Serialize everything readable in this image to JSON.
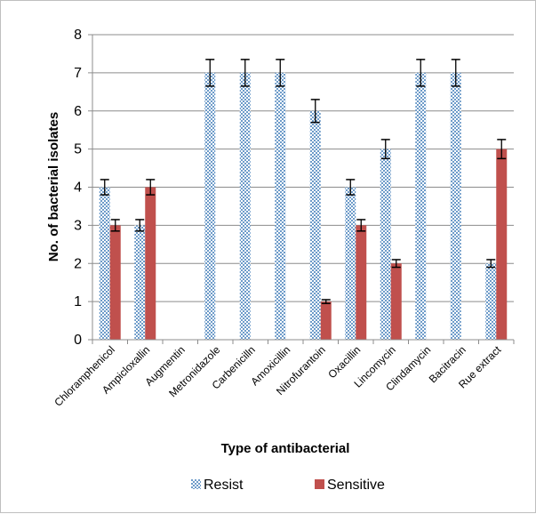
{
  "chart_data": {
    "type": "bar",
    "xlabel": "Type of antibacterial",
    "ylabel": "No. of bacterial isolates",
    "ylim": [
      0,
      8
    ],
    "yticks": [
      0,
      1,
      2,
      3,
      4,
      5,
      6,
      7,
      8
    ],
    "grid": "horizontal",
    "legend_position": "bottom",
    "categories": [
      "Chloramphenicol",
      "Ampicloxallin",
      "Augmentin",
      "Metronidazole",
      "Carbenicilln",
      "Amoxicillin",
      "Nitrofurantoin",
      "Oxacillin",
      "Lincomycin",
      "Clindamycin",
      "Bacitracin",
      "Rue extract"
    ],
    "series": [
      {
        "name": "Resist",
        "color": "#6d9bc9",
        "pattern": "checkered",
        "values": [
          4,
          3,
          null,
          7,
          7,
          7,
          6,
          4,
          5,
          7,
          7,
          2
        ],
        "error": [
          0.2,
          0.15,
          null,
          0.35,
          0.35,
          0.35,
          0.3,
          0.2,
          0.25,
          0.35,
          0.35,
          0.1
        ]
      },
      {
        "name": "Sensitive",
        "color": "#c0504d",
        "pattern": "solid",
        "values": [
          3,
          4,
          null,
          0,
          0,
          0,
          1,
          3,
          2,
          0,
          0,
          5
        ],
        "error": [
          0.15,
          0.2,
          null,
          null,
          null,
          null,
          0.05,
          0.15,
          0.1,
          null,
          null,
          0.25
        ]
      }
    ]
  }
}
